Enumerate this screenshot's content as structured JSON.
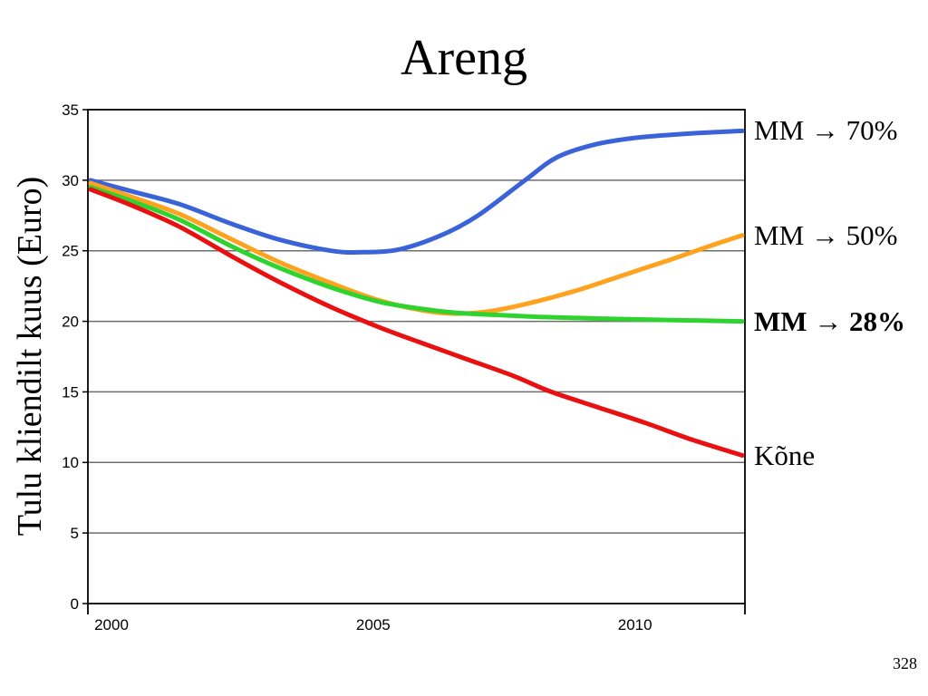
{
  "slide": {
    "page_number": "328"
  },
  "chart_data": {
    "type": "line",
    "title": "Areng",
    "ylabel": "Tulu kliendilt kuus (Euro)",
    "xlabel": "",
    "xlim": [
      1999.55,
      2012.1
    ],
    "ylim": [
      0,
      35
    ],
    "yticks": [
      0,
      5,
      10,
      15,
      20,
      25,
      30,
      35
    ],
    "xticks": [
      2000,
      2005,
      2010
    ],
    "grid": "horizontal",
    "legend_position": "right-of-line-ends",
    "colors": {
      "gridline": "#6e6e6e",
      "axis": "#000000",
      "background": "#ffffff",
      "text": "#000000"
    },
    "series": [
      {
        "name": "mm-70",
        "label": "MM → 70%",
        "color": "#3a62d9",
        "bold": false,
        "points": [
          [
            1999.6,
            30.0
          ],
          [
            2000.4,
            29.2
          ],
          [
            2001.3,
            28.3
          ],
          [
            2002.3,
            26.9
          ],
          [
            2003.2,
            25.8
          ],
          [
            2004.2,
            25.0
          ],
          [
            2004.8,
            24.9
          ],
          [
            2005.5,
            25.1
          ],
          [
            2006.3,
            26.1
          ],
          [
            2007.0,
            27.5
          ],
          [
            2007.9,
            30.0
          ],
          [
            2008.5,
            31.6
          ],
          [
            2009.2,
            32.5
          ],
          [
            2010.0,
            33.0
          ],
          [
            2011.0,
            33.3
          ],
          [
            2012.05,
            33.5
          ]
        ]
      },
      {
        "name": "mm-50",
        "label": "MM → 50%",
        "color": "#ffa21f",
        "bold": false,
        "points": [
          [
            1999.6,
            29.8
          ],
          [
            2000.4,
            28.8
          ],
          [
            2001.3,
            27.6
          ],
          [
            2002.3,
            25.8
          ],
          [
            2003.2,
            24.2
          ],
          [
            2004.2,
            22.7
          ],
          [
            2005.1,
            21.5
          ],
          [
            2005.9,
            20.8
          ],
          [
            2006.5,
            20.55
          ],
          [
            2007.2,
            20.7
          ],
          [
            2008.0,
            21.3
          ],
          [
            2008.9,
            22.2
          ],
          [
            2009.8,
            23.3
          ],
          [
            2010.7,
            24.4
          ],
          [
            2011.4,
            25.3
          ],
          [
            2012.05,
            26.1
          ]
        ]
      },
      {
        "name": "mm-28",
        "label": "MM → 28%",
        "color": "#2fd32f",
        "bold": true,
        "points": [
          [
            1999.6,
            29.5
          ],
          [
            2000.4,
            28.5
          ],
          [
            2001.3,
            27.2
          ],
          [
            2002.3,
            25.3
          ],
          [
            2003.2,
            23.8
          ],
          [
            2004.2,
            22.4
          ],
          [
            2005.1,
            21.4
          ],
          [
            2005.9,
            20.9
          ],
          [
            2006.6,
            20.6
          ],
          [
            2007.4,
            20.45
          ],
          [
            2008.3,
            20.3
          ],
          [
            2009.3,
            20.2
          ],
          [
            2010.5,
            20.1
          ],
          [
            2012.05,
            20.0
          ]
        ]
      },
      {
        "name": "kone",
        "label": "Kõne",
        "color": "#e81010",
        "bold": false,
        "points": [
          [
            1999.6,
            29.35
          ],
          [
            2000.4,
            28.2
          ],
          [
            2001.3,
            26.7
          ],
          [
            2002.3,
            24.6
          ],
          [
            2003.2,
            22.8
          ],
          [
            2004.2,
            21.0
          ],
          [
            2005.1,
            19.6
          ],
          [
            2005.9,
            18.5
          ],
          [
            2006.8,
            17.3
          ],
          [
            2007.7,
            16.1
          ],
          [
            2008.4,
            15.0
          ],
          [
            2009.3,
            13.9
          ],
          [
            2010.2,
            12.8
          ],
          [
            2011.1,
            11.6
          ],
          [
            2012.05,
            10.5
          ]
        ]
      }
    ]
  }
}
